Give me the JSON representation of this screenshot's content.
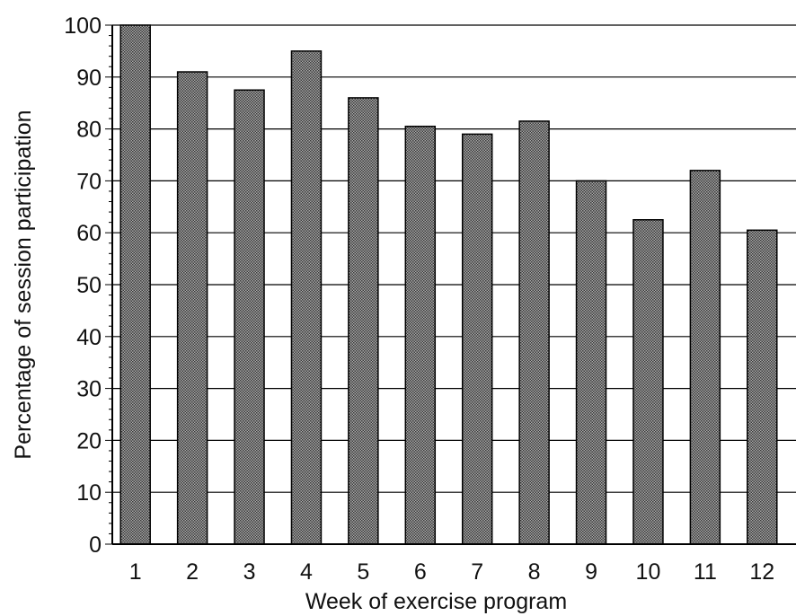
{
  "chart_data": {
    "type": "bar",
    "title": "",
    "xlabel": "Week of exercise program",
    "ylabel": "Percentage of session participation",
    "categories": [
      "1",
      "2",
      "3",
      "4",
      "5",
      "6",
      "7",
      "8",
      "9",
      "10",
      "11",
      "12"
    ],
    "values": [
      100,
      91,
      87.5,
      95,
      86,
      80.5,
      79,
      81.5,
      70,
      62.5,
      72,
      60.5
    ],
    "ylim": [
      0,
      100
    ],
    "yticks": [
      "0",
      "10",
      "20",
      "30",
      "40",
      "50",
      "60",
      "70",
      "80",
      "90",
      "100"
    ],
    "grid": "horizontal",
    "legend": "none",
    "colors": {
      "bar_fill": "#8a8a8a",
      "bar_stroke": "#000000",
      "grid": "#000000"
    }
  }
}
